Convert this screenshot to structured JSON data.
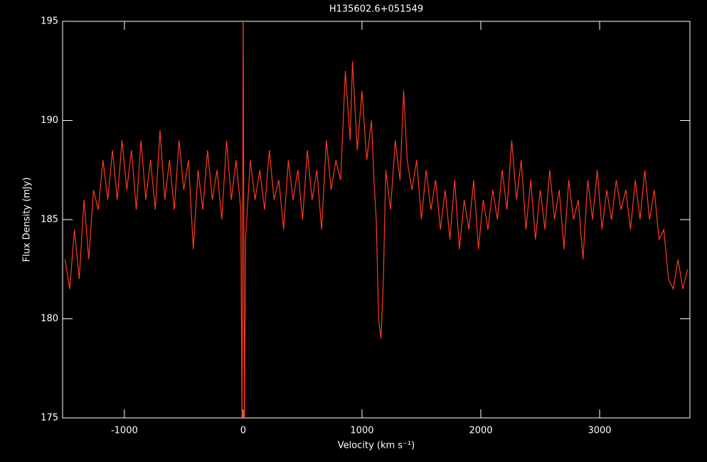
{
  "chart_data": {
    "type": "line",
    "title": "H135602.6+051549",
    "x_label": "Velocity (km s⁻¹)",
    "y_label": "Flux Density (mJy)",
    "xlim": [
      -1520,
      3760
    ],
    "ylim": [
      175,
      195
    ],
    "xticks": [
      -1000,
      0,
      1000,
      2000,
      3000
    ],
    "yticks": [
      175,
      180,
      185,
      190,
      195
    ],
    "x": [
      -1500,
      -1460,
      -1420,
      -1380,
      -1340,
      -1300,
      -1260,
      -1220,
      -1180,
      -1140,
      -1100,
      -1060,
      -1020,
      -980,
      -940,
      -900,
      -860,
      -820,
      -780,
      -740,
      -700,
      -660,
      -620,
      -580,
      -540,
      -500,
      -460,
      -420,
      -380,
      -340,
      -300,
      -260,
      -220,
      -180,
      -140,
      -100,
      -60,
      -20,
      -10,
      0,
      10,
      20,
      60,
      100,
      140,
      180,
      220,
      260,
      300,
      340,
      380,
      420,
      460,
      500,
      540,
      580,
      620,
      660,
      700,
      740,
      780,
      820,
      860,
      900,
      920,
      960,
      1000,
      1040,
      1080,
      1100,
      1120,
      1140,
      1160,
      1180,
      1200,
      1240,
      1280,
      1320,
      1350,
      1380,
      1420,
      1460,
      1500,
      1540,
      1580,
      1620,
      1660,
      1700,
      1740,
      1780,
      1820,
      1860,
      1900,
      1940,
      1980,
      2020,
      2060,
      2100,
      2140,
      2180,
      2220,
      2260,
      2300,
      2340,
      2380,
      2420,
      2460,
      2500,
      2540,
      2580,
      2620,
      2660,
      2700,
      2740,
      2780,
      2820,
      2860,
      2900,
      2940,
      2980,
      3020,
      3060,
      3100,
      3140,
      3180,
      3220,
      3260,
      3300,
      3340,
      3380,
      3420,
      3460,
      3500,
      3540,
      3580,
      3620,
      3660,
      3700,
      3740
    ],
    "series": [
      {
        "color": "#ff3b1f",
        "values": [
          183,
          181.5,
          184.5,
          182,
          186,
          183,
          186.5,
          185.5,
          188,
          186,
          188.5,
          186,
          189,
          186.5,
          188.5,
          185.5,
          189,
          186,
          188,
          185.5,
          189.5,
          186,
          188,
          185.5,
          189,
          186.5,
          188,
          183.5,
          187.5,
          185.5,
          188.5,
          186,
          187.5,
          185,
          189,
          186,
          188,
          185.5,
          174.5,
          195.5,
          174.5,
          184,
          188,
          186,
          187.5,
          185.5,
          188.5,
          186,
          187,
          184.5,
          188,
          186,
          187.5,
          185,
          188.5,
          186,
          187.5,
          184.5,
          189,
          186.5,
          188,
          187,
          192.5,
          189,
          193,
          188.5,
          191.5,
          188,
          190,
          187,
          185,
          180,
          179,
          182,
          187.5,
          185.5,
          189,
          187,
          191.5,
          188,
          186.5,
          188,
          185,
          187.5,
          185.5,
          187,
          184.5,
          186.5,
          184,
          187,
          183.5,
          186,
          184.5,
          187,
          183.5,
          186,
          184.5,
          186.5,
          185,
          187.5,
          185.5,
          189,
          186,
          188,
          184.5,
          187,
          184,
          186.5,
          184.5,
          187.5,
          185,
          186.5,
          183.5,
          187,
          185,
          186,
          183,
          187,
          185,
          187.5,
          184.5,
          186.5,
          185,
          187,
          185.5,
          186.5,
          184.5,
          187,
          185,
          187.5,
          185,
          186.5,
          184,
          184.5,
          182,
          181.5,
          183,
          181.5,
          182.5
        ]
      }
    ]
  }
}
